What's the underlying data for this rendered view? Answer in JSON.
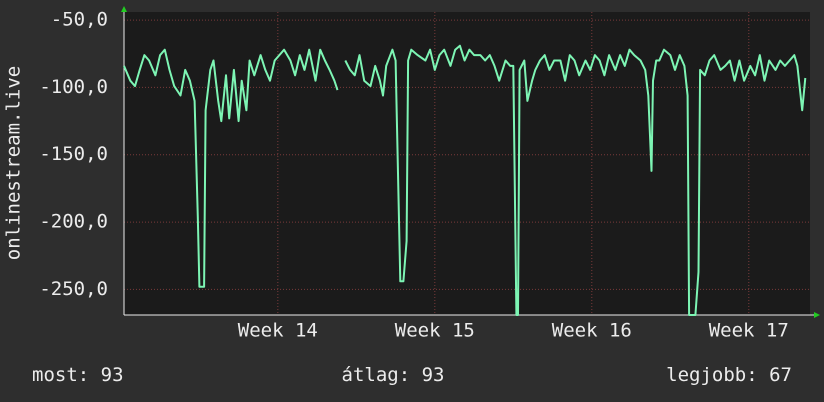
{
  "chart_data": {
    "type": "line",
    "y_label": "onlinestream.live",
    "color": "#7df5b4",
    "xlim": [
      13.02,
      17.39
    ],
    "xticks": [
      {
        "value": 14,
        "label": "Week 14"
      },
      {
        "value": 15,
        "label": "Week 15"
      },
      {
        "value": 16,
        "label": "Week 16"
      },
      {
        "value": 17,
        "label": "Week 17"
      }
    ],
    "ylim": [
      -269,
      -44
    ],
    "yticks": [
      {
        "value": -50,
        "label": "-50,0"
      },
      {
        "value": -100,
        "label": "-100,0"
      },
      {
        "value": -150,
        "label": "-150,0"
      },
      {
        "value": -200,
        "label": "-200,0"
      },
      {
        "value": -250,
        "label": "-250,0"
      }
    ],
    "grid": true,
    "x": [
      13.02,
      13.06,
      13.09,
      13.12,
      13.15,
      13.18,
      13.22,
      13.25,
      13.28,
      13.31,
      13.34,
      13.38,
      13.41,
      13.44,
      13.47,
      13.49,
      13.5,
      13.53,
      13.54,
      13.57,
      13.59,
      13.62,
      13.64,
      13.67,
      13.69,
      13.72,
      13.75,
      13.77,
      13.8,
      13.82,
      13.85,
      13.89,
      13.92,
      13.95,
      13.98,
      14.01,
      14.04,
      14.08,
      14.11,
      14.14,
      14.17,
      14.2,
      14.24,
      14.27,
      14.3,
      14.33,
      14.36,
      14.38,
      14.4,
      14.43,
      14.46,
      14.49,
      14.52,
      14.55,
      14.59,
      14.62,
      14.65,
      14.67,
      14.69,
      14.73,
      14.75,
      14.78,
      14.8,
      14.82,
      14.83,
      14.85,
      14.89,
      14.94,
      14.97,
      15.0,
      15.03,
      15.06,
      15.1,
      15.13,
      15.16,
      15.19,
      15.22,
      15.25,
      15.29,
      15.32,
      15.35,
      15.38,
      15.41,
      15.45,
      15.48,
      15.5,
      15.52,
      15.53,
      15.54,
      15.57,
      15.59,
      15.62,
      15.64,
      15.67,
      15.7,
      15.73,
      15.76,
      15.8,
      15.83,
      15.86,
      15.89,
      15.92,
      15.96,
      15.99,
      16.02,
      16.05,
      16.08,
      16.11,
      16.15,
      16.18,
      16.21,
      16.24,
      16.27,
      16.31,
      16.34,
      16.36,
      16.38,
      16.39,
      16.41,
      16.43,
      16.46,
      16.5,
      16.53,
      16.56,
      16.59,
      16.61,
      16.62,
      16.66,
      16.68,
      16.69,
      16.72,
      16.75,
      16.78,
      16.82,
      16.85,
      16.88,
      16.91,
      16.94,
      16.97,
      17.01,
      17.04,
      17.07,
      17.1,
      17.13,
      17.17,
      17.2,
      17.23,
      17.26,
      17.29,
      17.31,
      17.34,
      17.36
    ],
    "values": [
      -84,
      -95,
      -99,
      -87,
      -76,
      -80,
      -91,
      -76,
      -72,
      -87,
      -99,
      -106,
      -87,
      -95,
      -110,
      -196,
      -248,
      -248,
      -117,
      -87,
      -80,
      -110,
      -125,
      -91,
      -123,
      -87,
      -125,
      -95,
      -117,
      -80,
      -91,
      -76,
      -87,
      -95,
      -80,
      -76,
      -72,
      -80,
      -91,
      -76,
      -87,
      -72,
      -95,
      -72,
      -80,
      -87,
      -95,
      -102,
      null,
      -80,
      -87,
      -91,
      -76,
      -95,
      -99,
      -84,
      -95,
      -106,
      -84,
      -72,
      -80,
      -244,
      -244,
      -214,
      -80,
      -72,
      -76,
      -80,
      -72,
      -87,
      -76,
      -72,
      -84,
      -72,
      -69,
      -80,
      -72,
      -76,
      -76,
      -80,
      -76,
      -84,
      -95,
      -80,
      -84,
      -84,
      -269,
      -269,
      -87,
      -80,
      -110,
      -95,
      -87,
      -80,
      -76,
      -87,
      -80,
      -80,
      -95,
      -76,
      -80,
      -91,
      -80,
      -87,
      -76,
      -80,
      -91,
      -76,
      -87,
      -76,
      -84,
      -72,
      -76,
      -80,
      -87,
      -106,
      -162,
      -95,
      -80,
      -80,
      -72,
      -76,
      -87,
      -76,
      -84,
      -106,
      -269,
      -269,
      -237,
      -87,
      -91,
      -80,
      -76,
      -87,
      -84,
      -80,
      -95,
      -80,
      -95,
      -84,
      -91,
      -76,
      -95,
      -80,
      -87,
      -80,
      -84,
      -80,
      -76,
      -84,
      -117,
      -93
    ],
    "stats": [
      {
        "label": "most:",
        "value": 93
      },
      {
        "label": "átlag:",
        "value": 93
      },
      {
        "label": "legjobb:",
        "value": 67
      }
    ]
  }
}
